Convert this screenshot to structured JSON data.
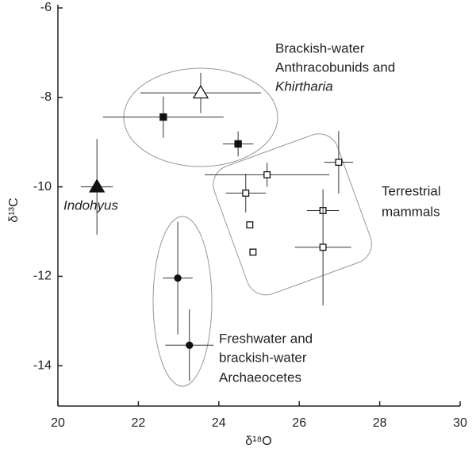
{
  "chart_data": {
    "type": "scatter",
    "xlabel": "δ¹⁸O",
    "ylabel": "δ¹³C",
    "xlim": [
      20,
      30
    ],
    "ylim": [
      -14.9,
      -6
    ],
    "xticks": [
      20,
      22,
      24,
      26,
      28,
      30
    ],
    "yticks": [
      -6,
      -8,
      -10,
      -12,
      -14
    ],
    "color": "#111",
    "points": [
      {
        "x": 20.97,
        "y": -10.0,
        "xerr": 0.4,
        "yerr": 1.07,
        "marker": "triangle-filled"
      },
      {
        "x": 23.55,
        "y": -7.9,
        "xerr": 1.5,
        "yerr": 0.45,
        "marker": "triangle-open"
      },
      {
        "x": 22.62,
        "y": -8.44,
        "xerr": 1.5,
        "yerr": 0.46,
        "marker": "square-filled"
      },
      {
        "x": 24.48,
        "y": -9.04,
        "xerr": 0.38,
        "yerr": 0.28,
        "marker": "square-filled"
      },
      {
        "x": 25.2,
        "y": -9.73,
        "xerr": 1.55,
        "yerr": 0.27,
        "marker": "square-open"
      },
      {
        "x": 26.98,
        "y": -9.45,
        "xerr": 0.36,
        "yerr": 0.7,
        "marker": "square-open"
      },
      {
        "x": 24.67,
        "y": -10.14,
        "xerr": 0.5,
        "yerr": 0.43,
        "marker": "square-open"
      },
      {
        "x": 26.59,
        "y": -10.53,
        "xerr": 0.4,
        "yerr": null,
        "marker": "square-open"
      },
      {
        "x": 26.59,
        "y": -11.35,
        "xerr": 0.7,
        "yerr": 1.3,
        "marker": "square-open"
      },
      {
        "x": 24.77,
        "y": -10.85,
        "xerr": null,
        "yerr": null,
        "marker": "square-open"
      },
      {
        "x": 24.85,
        "y": -11.46,
        "xerr": null,
        "yerr": null,
        "marker": "square-open"
      },
      {
        "x": 22.98,
        "y": -12.04,
        "xerr": 0.37,
        "yerr": 1.26,
        "marker": "circle-filled"
      },
      {
        "x": 23.27,
        "y": -13.54,
        "xerr": 0.6,
        "yerr": 0.8,
        "marker": "circle-filled"
      }
    ],
    "annotations": {
      "anthracobunids": [
        "Brackish-water",
        "Anthracobunids and",
        "Khirtharia"
      ],
      "terrestrial": [
        "Terrestrial",
        "mammals"
      ],
      "indohyus": "Indohyus",
      "archaeocetes": [
        "Freshwater and",
        "brackish-water",
        "Archaeocetes"
      ]
    }
  }
}
